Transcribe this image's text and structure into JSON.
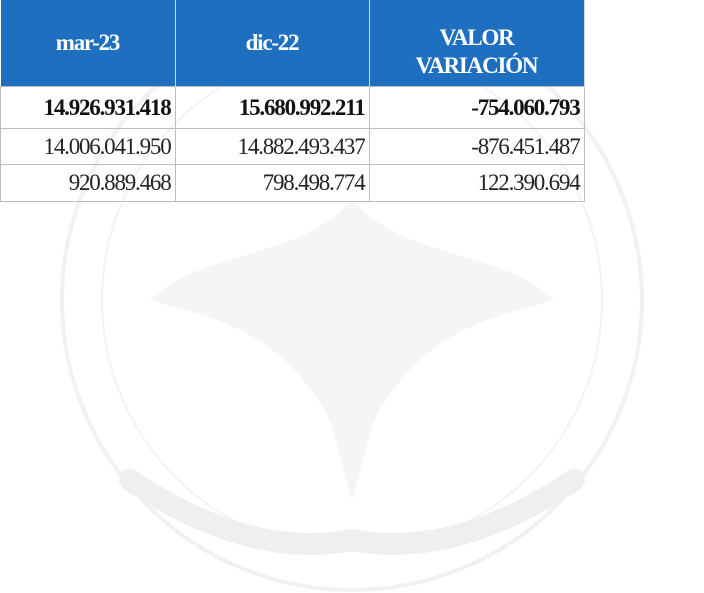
{
  "table": {
    "header": [
      "mar-23",
      "dic-22",
      [
        "VALOR",
        "VARIACIÓN"
      ]
    ],
    "rows": [
      [
        "14.926.931.418",
        "15.680.992.211",
        "-754.060.793"
      ],
      [
        "14.006.041.950",
        "14.882.493.437",
        "-876.451.487"
      ],
      [
        "920.889.468",
        "798.498.774",
        "122.390.694"
      ]
    ]
  }
}
